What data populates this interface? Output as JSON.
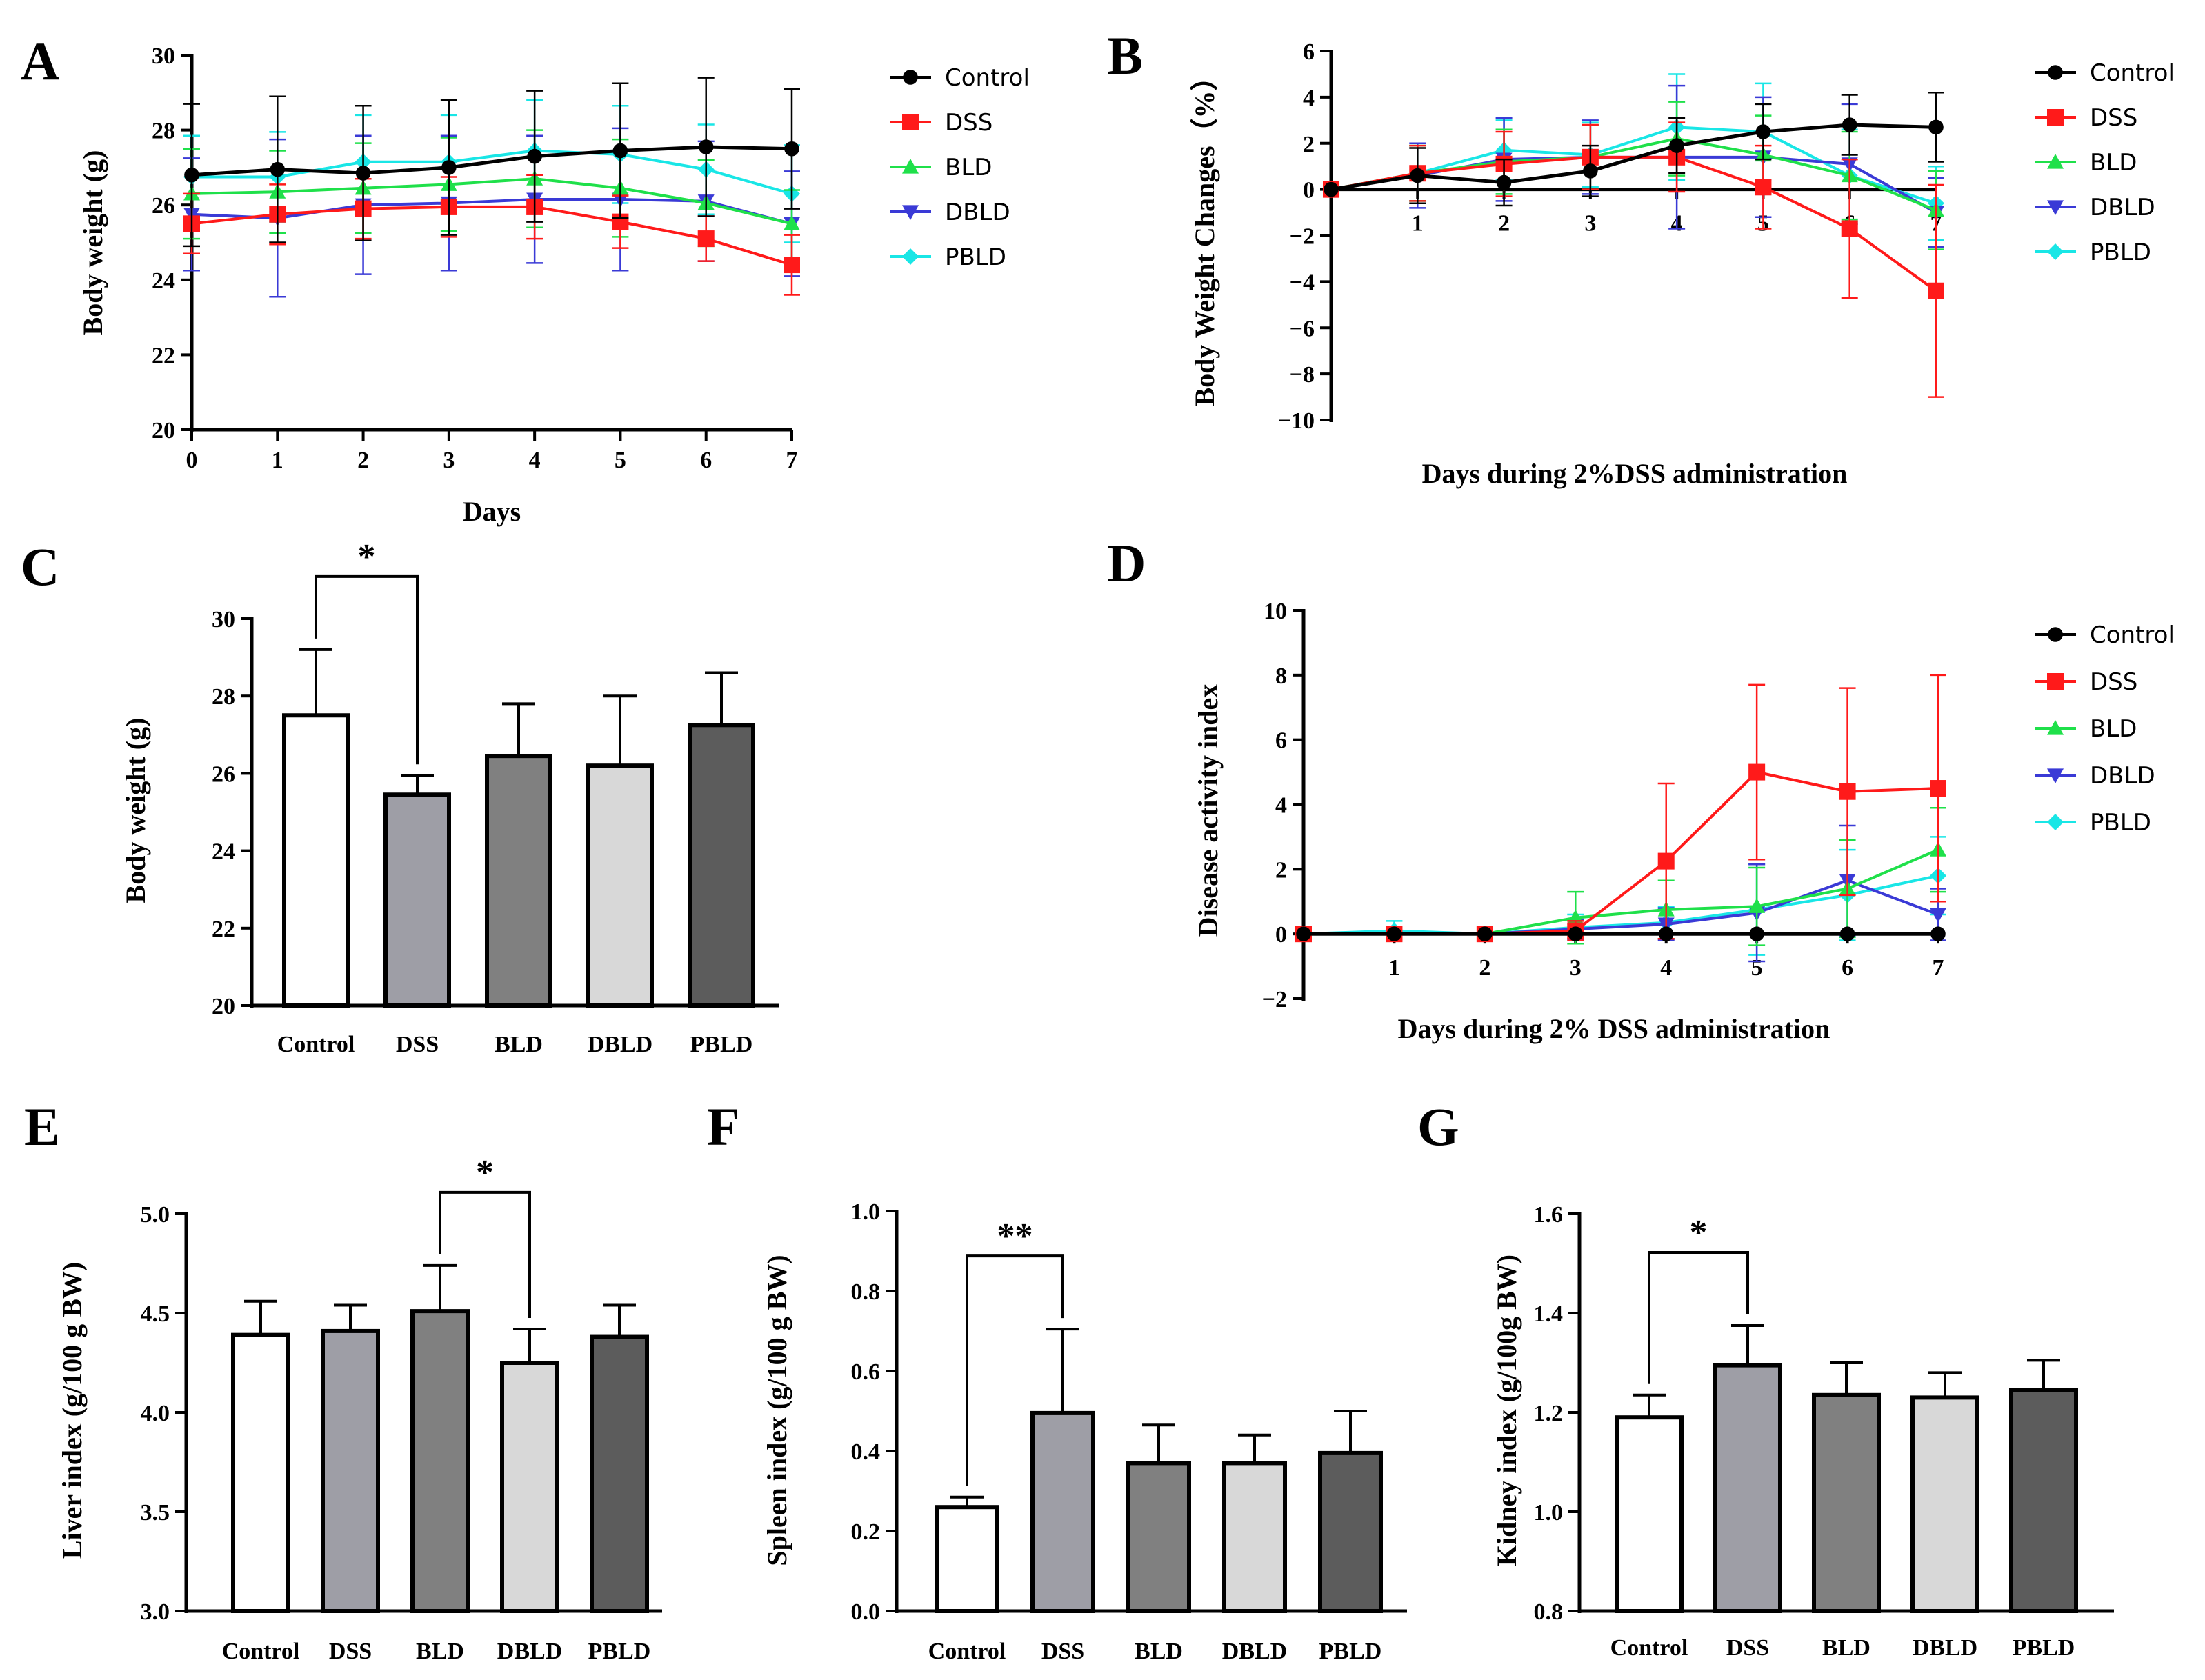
{
  "series_colors": {
    "Control": "#000000",
    "DSS": "#ff1a1a",
    "BLD": "#1fe04a",
    "DBLD": "#3a3ad6",
    "PBLD": "#19e6e6"
  },
  "bar_colors": {
    "Control": "#ffffff",
    "DSS": "#9e9ea6",
    "BLD": "#808080",
    "DBLD": "#d8d8d8",
    "PBLD": "#5c5c5c"
  },
  "chart_data": [
    {
      "panel": "A",
      "type": "line",
      "xlabel": "Days",
      "ylabel": "Body weight (g)",
      "x": [
        0,
        1,
        2,
        3,
        4,
        5,
        6,
        7
      ],
      "xticks": [
        "0",
        "1",
        "2",
        "3",
        "4",
        "5",
        "6",
        "7"
      ],
      "ylim": [
        20,
        30
      ],
      "yticks": [
        "20",
        "22",
        "24",
        "26",
        "28",
        "30"
      ],
      "series": [
        {
          "name": "Control",
          "values": [
            26.8,
            26.95,
            26.85,
            27.0,
            27.3,
            27.45,
            27.55,
            27.5
          ],
          "err": [
            1.9,
            1.95,
            1.8,
            1.8,
            1.75,
            1.8,
            1.85,
            1.6
          ]
        },
        {
          "name": "DSS",
          "values": [
            25.5,
            25.75,
            25.9,
            25.95,
            25.95,
            25.55,
            25.1,
            24.4
          ],
          "err": [
            0.8,
            0.8,
            0.8,
            0.8,
            0.85,
            0.7,
            0.6,
            0.8
          ]
        },
        {
          "name": "BLD",
          "values": [
            26.3,
            26.35,
            26.45,
            26.55,
            26.7,
            26.45,
            26.05,
            25.5
          ],
          "err": [
            1.2,
            1.1,
            1.2,
            1.25,
            1.3,
            1.3,
            1.15,
            0.9
          ]
        },
        {
          "name": "DBLD",
          "values": [
            25.75,
            25.65,
            26.0,
            26.05,
            26.15,
            26.15,
            26.1,
            25.5
          ],
          "err": [
            1.5,
            2.1,
            1.85,
            1.8,
            1.7,
            1.9,
            1.6,
            1.4
          ]
        },
        {
          "name": "PBLD",
          "values": [
            26.75,
            26.75,
            27.15,
            27.15,
            27.45,
            27.35,
            26.95,
            26.3
          ],
          "err": [
            1.1,
            1.2,
            1.25,
            1.25,
            1.35,
            1.3,
            1.2,
            1.3
          ]
        }
      ]
    },
    {
      "panel": "B",
      "type": "line",
      "xlabel": "Days during 2%DSS administration",
      "ylabel": "Body Weight Changes（%）",
      "x": [
        0,
        1,
        2,
        3,
        4,
        5,
        6,
        7
      ],
      "xticks": [
        "1",
        "2",
        "3",
        "4",
        "5",
        "6",
        "7"
      ],
      "ylim": [
        -10,
        6
      ],
      "yticks": [
        "−10",
        "−8",
        "−6",
        "−4",
        "−2",
        "0",
        "2",
        "4",
        "6"
      ],
      "series": [
        {
          "name": "Control",
          "values": [
            0,
            0.6,
            0.3,
            0.8,
            1.9,
            2.5,
            2.8,
            2.7
          ],
          "err": [
            0,
            1.2,
            1.0,
            1.1,
            1.2,
            1.2,
            1.3,
            1.5
          ]
        },
        {
          "name": "DSS",
          "values": [
            0,
            0.7,
            1.1,
            1.4,
            1.4,
            0.1,
            -1.7,
            -4.4
          ],
          "err": [
            0,
            1.2,
            1.4,
            1.4,
            1.5,
            1.8,
            3.0,
            4.6
          ]
        },
        {
          "name": "BLD",
          "values": [
            0,
            0.7,
            1.2,
            1.4,
            2.2,
            1.5,
            0.6,
            -0.9
          ],
          "err": [
            0,
            1.2,
            1.4,
            1.4,
            1.6,
            1.7,
            1.9,
            1.7
          ]
        },
        {
          "name": "DBLD",
          "values": [
            0,
            0.6,
            1.3,
            1.4,
            1.4,
            1.4,
            1.1,
            -1.0
          ],
          "err": [
            0,
            1.4,
            1.8,
            1.6,
            3.1,
            2.6,
            2.6,
            1.5
          ]
        },
        {
          "name": "PBLD",
          "values": [
            0,
            0.7,
            1.7,
            1.5,
            2.7,
            2.5,
            0.6,
            -0.6
          ],
          "err": [
            0,
            1.2,
            1.3,
            1.4,
            2.3,
            2.1,
            2.0,
            1.6
          ]
        }
      ]
    },
    {
      "panel": "C",
      "type": "bar",
      "xlabel": "",
      "ylabel": "Body weight (g)",
      "categories": [
        "Control",
        "DSS",
        "BLD",
        "DBLD",
        "PBLD"
      ],
      "values": [
        27.5,
        25.45,
        26.45,
        26.2,
        27.25
      ],
      "err": [
        1.7,
        0.5,
        1.35,
        1.8,
        1.35
      ],
      "ylim": [
        20,
        30
      ],
      "yticks": [
        "20",
        "22",
        "24",
        "26",
        "28",
        "30"
      ],
      "significance": [
        {
          "from": "Control",
          "to": "DSS",
          "label": "*"
        }
      ]
    },
    {
      "panel": "D",
      "type": "line",
      "xlabel": "Days during 2% DSS administration",
      "ylabel": "Disease activity index",
      "x": [
        0,
        1,
        2,
        3,
        4,
        5,
        6,
        7
      ],
      "xticks": [
        "1",
        "2",
        "3",
        "4",
        "5",
        "6",
        "7"
      ],
      "ylim": [
        -2,
        10
      ],
      "yticks": [
        "−2",
        "0",
        "2",
        "4",
        "6",
        "8",
        "10"
      ],
      "series": [
        {
          "name": "Control",
          "values": [
            0,
            0,
            0,
            0,
            0,
            0,
            0,
            0
          ],
          "err": [
            0,
            0,
            0,
            0,
            0,
            0,
            0,
            0
          ]
        },
        {
          "name": "DSS",
          "values": [
            0,
            0,
            0,
            0.1,
            2.25,
            5.0,
            4.4,
            4.5
          ],
          "err": [
            0,
            0,
            0,
            0.3,
            2.4,
            2.7,
            3.2,
            3.5
          ]
        },
        {
          "name": "BLD",
          "values": [
            0,
            0,
            0,
            0.5,
            0.75,
            0.85,
            1.4,
            2.6
          ],
          "err": [
            0,
            0,
            0,
            0.8,
            0.9,
            1.2,
            1.5,
            1.3
          ]
        },
        {
          "name": "DBLD",
          "values": [
            0,
            0,
            0,
            0.15,
            0.3,
            0.65,
            1.65,
            0.6
          ],
          "err": [
            0,
            0,
            0,
            0.3,
            0.5,
            1.5,
            1.7,
            0.8
          ]
        },
        {
          "name": "PBLD",
          "values": [
            0,
            0.1,
            0,
            0.2,
            0.35,
            0.75,
            1.2,
            1.8
          ],
          "err": [
            0,
            0.3,
            0,
            0.4,
            0.5,
            1.4,
            1.4,
            1.2
          ]
        }
      ]
    },
    {
      "panel": "E",
      "type": "bar",
      "xlabel": "",
      "ylabel": "Liver index (g/100 g BW)",
      "categories": [
        "Control",
        "DSS",
        "BLD",
        "DBLD",
        "PBLD"
      ],
      "values": [
        4.39,
        4.41,
        4.51,
        4.25,
        4.38
      ],
      "err": [
        0.17,
        0.13,
        0.23,
        0.17,
        0.16
      ],
      "ylim": [
        3.0,
        5.0
      ],
      "yticks": [
        "3.0",
        "3.5",
        "4.0",
        "4.5",
        "5.0"
      ],
      "significance": [
        {
          "from": "BLD",
          "to": "DBLD",
          "label": "*"
        }
      ]
    },
    {
      "panel": "F",
      "type": "bar",
      "xlabel": "",
      "ylabel": "Spleen index (g/100 g BW)",
      "categories": [
        "Control",
        "DSS",
        "BLD",
        "DBLD",
        "PBLD"
      ],
      "values": [
        0.26,
        0.495,
        0.37,
        0.37,
        0.395
      ],
      "err": [
        0.025,
        0.21,
        0.095,
        0.07,
        0.105
      ],
      "ylim": [
        0.0,
        1.0
      ],
      "yticks": [
        "0.0",
        "0.2",
        "0.4",
        "0.6",
        "0.8",
        "1.0"
      ],
      "significance": [
        {
          "from": "Control",
          "to": "DSS",
          "label": "**"
        }
      ]
    },
    {
      "panel": "G",
      "type": "bar",
      "xlabel": "",
      "ylabel": "Kidney index (g/100g BW)",
      "categories": [
        "Control",
        "DSS",
        "BLD",
        "DBLD",
        "PBLD"
      ],
      "values": [
        1.19,
        1.295,
        1.235,
        1.23,
        1.245
      ],
      "err": [
        0.045,
        0.08,
        0.065,
        0.05,
        0.06
      ],
      "ylim": [
        0.8,
        1.6
      ],
      "yticks": [
        "0.8",
        "1.0",
        "1.2",
        "1.4",
        "1.6"
      ],
      "significance": [
        {
          "from": "Control",
          "to": "DSS",
          "label": "*"
        }
      ]
    }
  ]
}
